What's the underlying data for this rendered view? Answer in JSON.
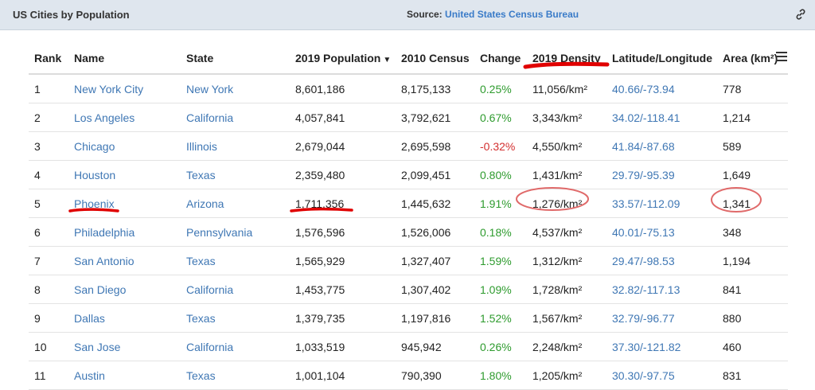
{
  "header": {
    "title": "US Cities by Population",
    "source_label": "Source:",
    "source_link": "United States Census Bureau",
    "link_icon": "link-icon"
  },
  "table": {
    "columns": [
      "Rank",
      "Name",
      "State",
      "2019 Population",
      "2010 Census",
      "Change",
      "2019 Density",
      "Latitude/Longitude",
      "Area (km²)"
    ],
    "sort_indicator": "▼",
    "menu_icon": "hamburger-menu-icon",
    "rows": [
      {
        "rank": "1",
        "name": "New York City",
        "state": "New York",
        "pop2019": "8,601,186",
        "census2010": "8,175,133",
        "change": "0.25%",
        "density": "11,056/km²",
        "latlong": "40.66/-73.94",
        "area": "778"
      },
      {
        "rank": "2",
        "name": "Los Angeles",
        "state": "California",
        "pop2019": "4,057,841",
        "census2010": "3,792,621",
        "change": "0.67%",
        "density": "3,343/km²",
        "latlong": "34.02/-118.41",
        "area": "1,214"
      },
      {
        "rank": "3",
        "name": "Chicago",
        "state": "Illinois",
        "pop2019": "2,679,044",
        "census2010": "2,695,598",
        "change": "-0.32%",
        "density": "4,550/km²",
        "latlong": "41.84/-87.68",
        "area": "589"
      },
      {
        "rank": "4",
        "name": "Houston",
        "state": "Texas",
        "pop2019": "2,359,480",
        "census2010": "2,099,451",
        "change": "0.80%",
        "density": "1,431/km²",
        "latlong": "29.79/-95.39",
        "area": "1,649"
      },
      {
        "rank": "5",
        "name": "Phoenix",
        "state": "Arizona",
        "pop2019": "1,711,356",
        "census2010": "1,445,632",
        "change": "1.91%",
        "density": "1,276/km²",
        "latlong": "33.57/-112.09",
        "area": "1,341"
      },
      {
        "rank": "6",
        "name": "Philadelphia",
        "state": "Pennsylvania",
        "pop2019": "1,576,596",
        "census2010": "1,526,006",
        "change": "0.18%",
        "density": "4,537/km²",
        "latlong": "40.01/-75.13",
        "area": "348"
      },
      {
        "rank": "7",
        "name": "San Antonio",
        "state": "Texas",
        "pop2019": "1,565,929",
        "census2010": "1,327,407",
        "change": "1.59%",
        "density": "1,312/km²",
        "latlong": "29.47/-98.53",
        "area": "1,194"
      },
      {
        "rank": "8",
        "name": "San Diego",
        "state": "California",
        "pop2019": "1,453,775",
        "census2010": "1,307,402",
        "change": "1.09%",
        "density": "1,728/km²",
        "latlong": "32.82/-117.13",
        "area": "841"
      },
      {
        "rank": "9",
        "name": "Dallas",
        "state": "Texas",
        "pop2019": "1,379,735",
        "census2010": "1,197,816",
        "change": "1.52%",
        "density": "1,567/km²",
        "latlong": "32.79/-96.77",
        "area": "880"
      },
      {
        "rank": "10",
        "name": "San Jose",
        "state": "California",
        "pop2019": "1,033,519",
        "census2010": "945,942",
        "change": "0.26%",
        "density": "2,248/km²",
        "latlong": "37.30/-121.82",
        "area": "460"
      },
      {
        "rank": "11",
        "name": "Austin",
        "state": "Texas",
        "pop2019": "1,001,104",
        "census2010": "790,390",
        "change": "1.80%",
        "density": "1,205/km²",
        "latlong": "30.30/-97.75",
        "area": "831"
      }
    ]
  },
  "colors": {
    "link": "#3f77b4",
    "positive": "#2e9b2e",
    "negative": "#d32f2f",
    "annotation": "#e00000",
    "header_bg": "#dfe6ee"
  }
}
